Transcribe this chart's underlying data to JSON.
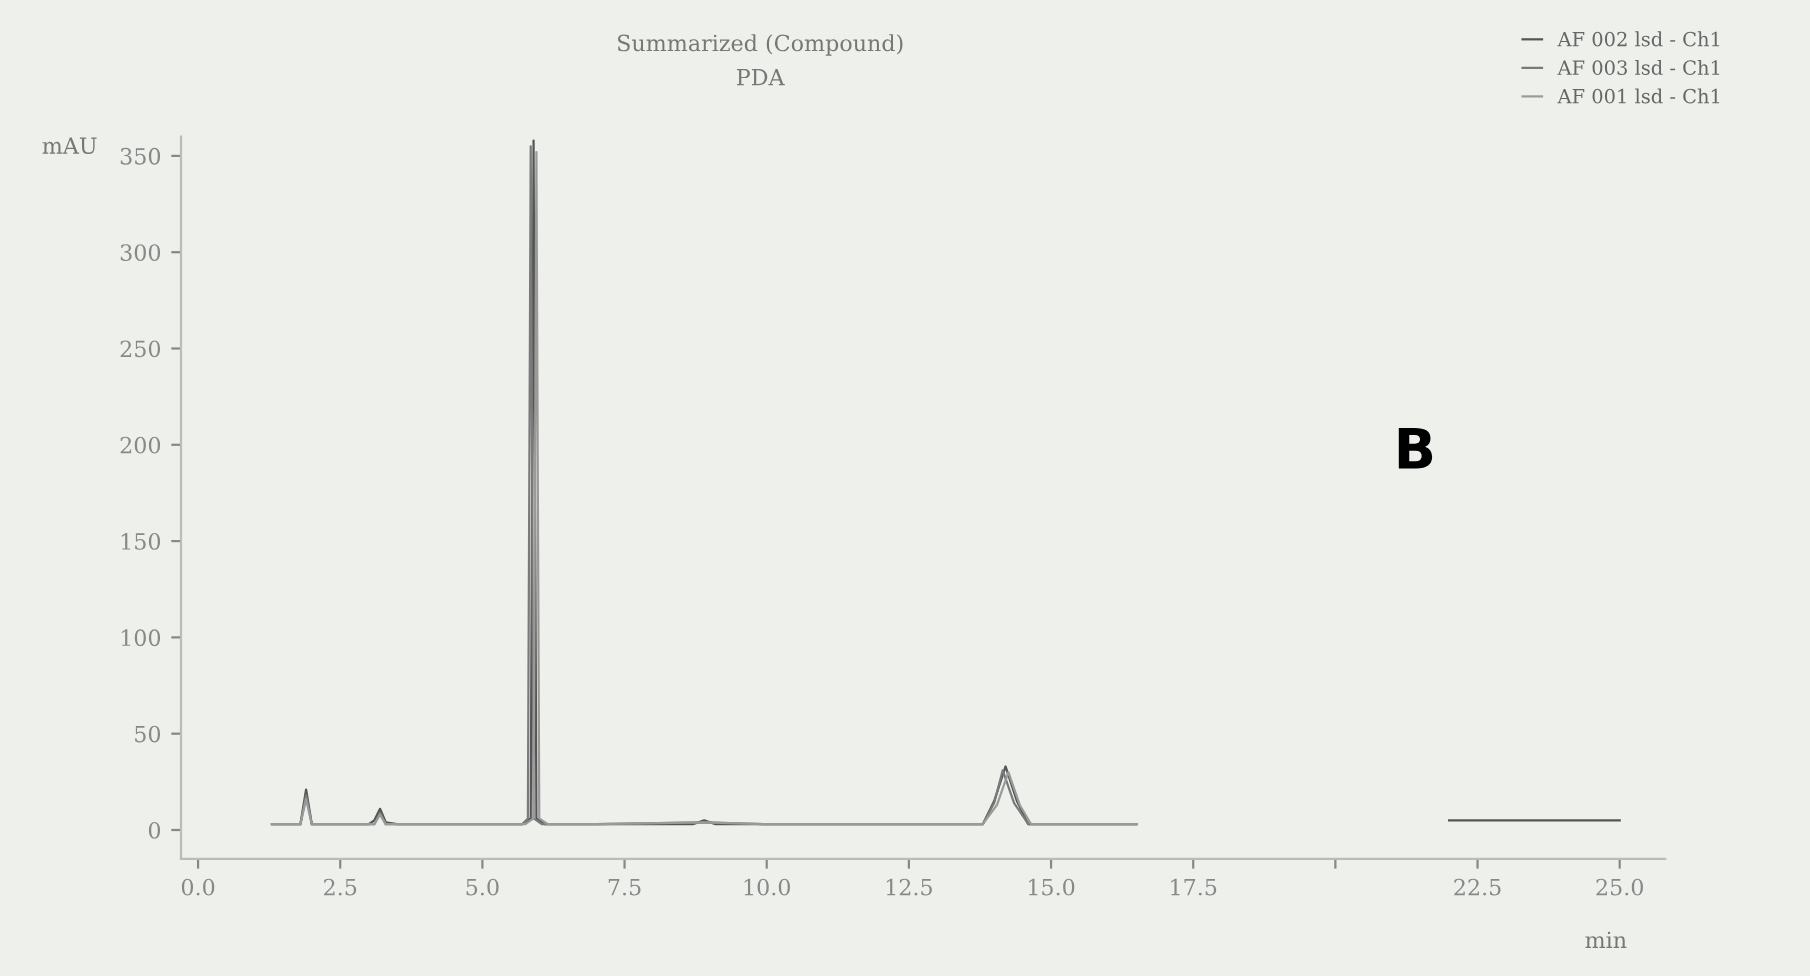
{
  "chart_data": {
    "type": "line",
    "title": "Summarized (Compound)",
    "subtitle": "PDA",
    "ylabel": "mAU",
    "xlabel": "min",
    "annotations": [
      "B"
    ],
    "xlim": [
      -0.3,
      25.8
    ],
    "ylim": [
      -15,
      360
    ],
    "xticks": [
      {
        "value": 0,
        "label": "0.0"
      },
      {
        "value": 2.5,
        "label": "2.5"
      },
      {
        "value": 5,
        "label": "5.0"
      },
      {
        "value": 7.5,
        "label": "7.5"
      },
      {
        "value": 10,
        "label": "10.0"
      },
      {
        "value": 12.5,
        "label": "12.5"
      },
      {
        "value": 15,
        "label": "15.0"
      },
      {
        "value": 17.5,
        "label": "17.5"
      },
      {
        "value": 20,
        "label": null
      },
      {
        "value": 22.5,
        "label": "22.5"
      },
      {
        "value": 25,
        "label": "25.0"
      }
    ],
    "yticks": [
      0,
      50,
      100,
      150,
      200,
      250,
      300,
      350
    ],
    "grid": false,
    "legend": "top right",
    "line_style": "solid",
    "marker": "none",
    "series": [
      {
        "name": "AF 002 lsd - Ch1",
        "color": "#555555",
        "x": [
          1.3,
          1.8,
          1.9,
          2.0,
          2.5,
          3.0,
          3.1,
          3.2,
          3.3,
          3.5,
          4.0,
          5.0,
          5.7,
          5.85,
          5.9,
          5.95,
          6.1,
          7.0,
          8.7,
          8.9,
          9.1,
          10.0,
          12.5,
          13.8,
          14.0,
          14.2,
          14.4,
          14.6,
          15.5,
          16.5,
          16.6,
          22.0,
          25.0
        ],
        "values": [
          3,
          3,
          21,
          3,
          3,
          3,
          5,
          11,
          4,
          3,
          3,
          3,
          3,
          6,
          358,
          6,
          3,
          3,
          3,
          5,
          3,
          3,
          3,
          3,
          15,
          33,
          15,
          3,
          3,
          3,
          null,
          5,
          5
        ]
      },
      {
        "name": "AF 003 lsd - Ch1",
        "color": "#7a7a7a",
        "x": [
          1.3,
          1.8,
          1.9,
          2.0,
          3.1,
          3.2,
          3.3,
          5.0,
          5.7,
          5.8,
          5.85,
          5.9,
          6.05,
          7.0,
          8.9,
          10.0,
          13.8,
          14.0,
          14.15,
          14.35,
          14.6,
          16.5
        ],
        "values": [
          3,
          3,
          18,
          3,
          3,
          9,
          3,
          3,
          3,
          6,
          355,
          6,
          3,
          3,
          4,
          3,
          3,
          14,
          31,
          14,
          3,
          3
        ]
      },
      {
        "name": "AF 001 lsd - Ch1",
        "color": "#9a9a9a",
        "x": [
          1.3,
          1.8,
          1.9,
          2.0,
          3.1,
          3.2,
          3.3,
          5.0,
          5.75,
          5.9,
          5.95,
          6.0,
          6.15,
          7.0,
          8.9,
          10.0,
          13.8,
          14.05,
          14.25,
          14.45,
          14.65,
          16.5
        ],
        "values": [
          3,
          3,
          16,
          3,
          3,
          8,
          3,
          3,
          3,
          6,
          352,
          6,
          3,
          3,
          4,
          3,
          3,
          13,
          30,
          13,
          3,
          3
        ]
      }
    ]
  }
}
